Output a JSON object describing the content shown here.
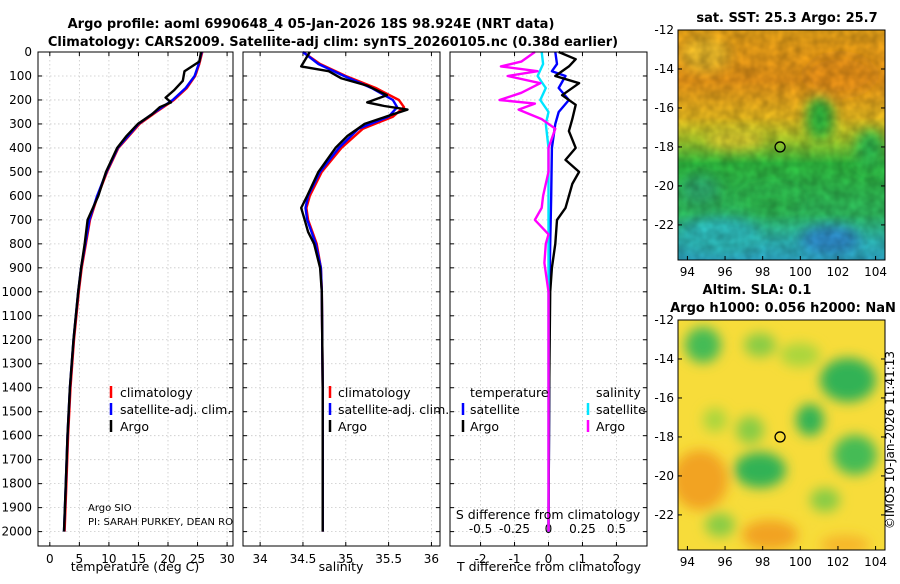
{
  "titles": {
    "line1": "Argo profile: aoml 6990648_4 05-Jan-2026 18S 98.924E (NRT data)",
    "line2": "Climatology: CARS2009. Satellite-adj clim: synTS_20260105.nc (0.38d earlier)"
  },
  "depth_ticks": [
    "0",
    "100",
    "200",
    "300",
    "400",
    "500",
    "600",
    "700",
    "800",
    "900",
    "1000",
    "1100",
    "1200",
    "1300",
    "1400",
    "1500",
    "1600",
    "1700",
    "1800",
    "1900",
    "2000"
  ],
  "colors": {
    "climatology": "#ff0000",
    "satellite": "#0000ff",
    "argo": "#000000",
    "sat_salinity": "#00e5ff",
    "argo_salinity": "#ff00ff"
  },
  "chart_data": [
    {
      "type": "line",
      "id": "temperature",
      "xlabel": "temperature (deg C)",
      "ylabel": "depth",
      "xlim": [
        -2,
        31
      ],
      "ylim": [
        2060,
        0
      ],
      "xticks": [
        "0",
        "5",
        "10",
        "15",
        "20",
        "25",
        "30"
      ],
      "legend": [
        "climatology",
        "satellite-adj. clim.",
        "Argo"
      ],
      "annotations": [
        "Argo SIO",
        "PI: SARAH PURKEY, DEAN RO"
      ],
      "series": [
        {
          "name": "climatology",
          "color": "#ff0000",
          "depth": [
            0,
            50,
            100,
            150,
            200,
            250,
            300,
            400,
            500,
            600,
            700,
            800,
            900,
            1000,
            1200,
            1400,
            1600,
            1800,
            2000
          ],
          "values": [
            25.8,
            25.3,
            24.6,
            23.2,
            21.0,
            18.0,
            15.2,
            11.6,
            9.7,
            8.1,
            6.8,
            6.1,
            5.4,
            4.9,
            4.1,
            3.5,
            3.1,
            2.8,
            2.5
          ]
        },
        {
          "name": "satellite-adj. clim.",
          "color": "#0000ff",
          "depth": [
            0,
            50,
            100,
            150,
            200,
            250,
            300,
            400,
            500,
            600,
            700,
            800,
            900,
            1000,
            1200,
            1400,
            1600,
            1800,
            2000
          ],
          "values": [
            25.7,
            25.2,
            24.5,
            23.0,
            20.8,
            17.8,
            15.0,
            11.5,
            9.6,
            8.0,
            6.7,
            6.0,
            5.3,
            4.8,
            4.0,
            3.4,
            3.0,
            2.7,
            2.4
          ]
        },
        {
          "name": "Argo",
          "color": "#000000",
          "depth": [
            0,
            40,
            80,
            120,
            160,
            190,
            210,
            230,
            260,
            300,
            350,
            400,
            500,
            600,
            700,
            800,
            900,
            1000,
            1200,
            1400,
            1600,
            1800,
            2000
          ],
          "values": [
            25.6,
            25.3,
            22.8,
            22.5,
            21.0,
            19.6,
            20.5,
            18.6,
            17.3,
            14.9,
            13.0,
            11.4,
            9.5,
            8.2,
            6.4,
            5.9,
            5.3,
            4.8,
            4.0,
            3.4,
            3.0,
            2.7,
            2.4
          ]
        }
      ]
    },
    {
      "type": "line",
      "id": "salinity",
      "xlabel": "salinity",
      "xlim": [
        33.8,
        36.1
      ],
      "ylim": [
        2060,
        0
      ],
      "xticks": [
        "34",
        "34.5",
        "35",
        "35.5",
        "36"
      ],
      "legend": [
        "climatology",
        "satellite-adj. clim.",
        "Argo"
      ],
      "series": [
        {
          "name": "climatology",
          "color": "#ff0000",
          "depth": [
            0,
            50,
            100,
            150,
            200,
            230,
            270,
            320,
            400,
            500,
            600,
            650,
            700,
            800,
            900,
            1000,
            1400,
            2000
          ],
          "values": [
            34.5,
            34.7,
            35.0,
            35.35,
            35.62,
            35.68,
            35.55,
            35.2,
            34.95,
            34.72,
            34.58,
            34.54,
            34.56,
            34.66,
            34.71,
            34.72,
            34.73,
            34.73
          ]
        },
        {
          "name": "satellite-adj. clim.",
          "color": "#0000ff",
          "depth": [
            0,
            50,
            100,
            150,
            200,
            230,
            270,
            320,
            400,
            500,
            600,
            650,
            700,
            800,
            900,
            1000,
            1400,
            2000
          ],
          "values": [
            34.5,
            34.68,
            34.98,
            35.3,
            35.55,
            35.6,
            35.5,
            35.15,
            34.92,
            34.7,
            34.56,
            34.53,
            34.55,
            34.65,
            34.71,
            34.72,
            34.73,
            34.73
          ]
        },
        {
          "name": "Argo",
          "color": "#000000",
          "depth": [
            0,
            60,
            80,
            110,
            140,
            180,
            210,
            225,
            240,
            260,
            300,
            350,
            400,
            500,
            600,
            650,
            700,
            750,
            800,
            900,
            1000,
            1400,
            2000
          ],
          "values": [
            34.58,
            34.48,
            34.8,
            34.95,
            35.25,
            35.48,
            35.25,
            35.45,
            35.72,
            35.55,
            35.22,
            35.02,
            34.88,
            34.68,
            34.55,
            34.48,
            34.52,
            34.56,
            34.63,
            34.7,
            34.72,
            34.73,
            34.73
          ]
        }
      ]
    },
    {
      "type": "line",
      "id": "difference",
      "xlabel": "T difference from climatology",
      "xlim": [
        -2.9,
        2.9
      ],
      "ylim": [
        2060,
        0
      ],
      "xticks": [
        "-2",
        "-1",
        "0",
        "1",
        "2"
      ],
      "xlabel_alt": "S difference from climatology",
      "xticks_alt": [
        "-0.5",
        "-0.25",
        "0",
        "0.25",
        "0.5"
      ],
      "legend_temperature_header": "temperature",
      "legend_salinity_header": "salinity",
      "legend_temperature": [
        "satellite",
        "Argo"
      ],
      "legend_salinity": [
        "satellite",
        "Argo"
      ],
      "series": [
        {
          "name": "temperature satellite",
          "color": "#0000ff",
          "depth": [
            0,
            50,
            80,
            100,
            150,
            200,
            250,
            300,
            400,
            600,
            800,
            1000,
            1400,
            2000
          ],
          "values": [
            0.2,
            0.25,
            0.1,
            0.5,
            0.3,
            0.6,
            0.3,
            0.2,
            0.1,
            0.08,
            0.05,
            0.03,
            0.02,
            0.0
          ]
        },
        {
          "name": "temperature Argo",
          "color": "#000000",
          "depth": [
            0,
            30,
            60,
            100,
            130,
            180,
            220,
            280,
            330,
            400,
            450,
            500,
            550,
            600,
            650,
            700,
            800,
            900,
            1000,
            1400,
            2000
          ],
          "values": [
            0.3,
            0.8,
            0.6,
            0.2,
            0.9,
            0.4,
            0.8,
            0.7,
            0.6,
            0.8,
            0.5,
            0.9,
            0.7,
            0.6,
            0.5,
            0.25,
            0.2,
            0.1,
            0.05,
            0.02,
            0.0
          ]
        },
        {
          "name": "salinity satellite",
          "color": "#00e5ff",
          "depth": [
            0,
            50,
            100,
            150,
            200,
            250,
            300,
            400,
            600,
            800,
            1000,
            1400,
            2000
          ],
          "values": [
            -0.05,
            -0.04,
            -0.08,
            -0.02,
            -0.06,
            0.0,
            -0.02,
            0.0,
            0.0,
            0.0,
            0.0,
            0.0,
            0.0
          ]
        },
        {
          "name": "salinity Argo",
          "color": "#ff00ff",
          "depth": [
            0,
            40,
            60,
            80,
            100,
            130,
            170,
            200,
            215,
            240,
            280,
            320,
            400,
            500,
            550,
            600,
            650,
            700,
            760,
            800,
            880,
            1000,
            1400,
            2000
          ],
          "values": [
            -0.1,
            -0.2,
            -0.35,
            -0.08,
            -0.3,
            -0.06,
            -0.2,
            -0.36,
            -0.1,
            -0.22,
            -0.05,
            0.05,
            0.0,
            0.0,
            -0.02,
            -0.04,
            -0.05,
            -0.1,
            0.0,
            -0.02,
            -0.03,
            0.0,
            0.0,
            0.0
          ]
        }
      ]
    }
  ],
  "maps": {
    "top": {
      "title": "sat. SST: 25.3 Argo: 25.7",
      "yticks": [
        "-12",
        "-14",
        "-16",
        "-18",
        "-20",
        "-22"
      ],
      "xticks": [
        "94",
        "96",
        "98",
        "100",
        "102",
        "104"
      ],
      "argo_lon": 98.924,
      "argo_lat": -18.0
    },
    "bottom": {
      "title1": "Altim. SLA: 0.1",
      "title2": "Argo h1000: 0.056 h2000: NaN",
      "yticks": [
        "-12",
        "-14",
        "-16",
        "-18",
        "-20",
        "-22"
      ],
      "xticks": [
        "94",
        "96",
        "98",
        "100",
        "102",
        "104"
      ],
      "argo_lon": 98.924,
      "argo_lat": -18.0
    }
  },
  "watermark": "©IMOS 10-Jan-2026 11:41:13"
}
